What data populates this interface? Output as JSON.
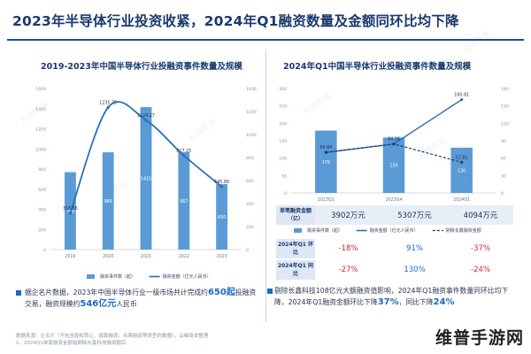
{
  "page": {
    "title": "2023年半导体行业投资收紧，2024年Q1融资数量及金额同环比均下降",
    "watermark": "云岫资本",
    "site_logo": "维普手游网"
  },
  "left_panel": {
    "subtitle": "2019-2023年中国半导体行业投融资事件数量及规模",
    "legend_bar": "融资事件数（起）",
    "legend_line": "融资金额（亿元人民币）",
    "note_parts": {
      "pre": "据企名片数据，2023年中国半导体行业一级市场共计完成约",
      "hl1": "650起",
      "mid": "投融资交易，融资规模约",
      "hl2": "546亿元",
      "post": "人民币"
    }
  },
  "right_panel": {
    "subtitle": "2024年Q1中国半导体行业投融资事件数量及规模",
    "legend_bar": "融资事件数（起）",
    "legend_line": "融资金额（亿元人民币）",
    "legend_dash": "剔除长鑫融资金额",
    "table": {
      "avg_label": "单笔融资金额（亿）",
      "avg": [
        "3902万元",
        "5307万元",
        "4094万元"
      ],
      "yoy_label": "2024年Q1 环比",
      "yoy": [
        "-18%",
        "91%",
        "-37%"
      ],
      "qoq_label": "2024年Q1 同比",
      "qoq": [
        "-27%",
        "130%",
        "-24%"
      ]
    },
    "note_parts": {
      "pre": "剔除长鑫科技108亿元大额融资值影响，2024年Q1融资事件数量同环比均下降，2024年Q1融资金额环比下降",
      "hl1": "37%",
      "mid": "，同比下降",
      "hl2": "24%"
    }
  },
  "source": {
    "line1": "数据来源：企名片（不包含股权转让、借款融资、众筹融资等类型的数据），云岫资本整理",
    "line2": "1、2024Q1单笔融资金额指剔除长鑫科技融资额后"
  },
  "chart_data": [
    {
      "type": "bar",
      "title": "2019-2023年中国半导体行业投融资事件数量及规模",
      "categories": [
        "2019",
        "2020",
        "2021",
        "2022",
        "2023"
      ],
      "series": [
        {
          "name": "融资事件数（起）",
          "type": "bar",
          "values": [
            769,
            966,
            1415,
            967,
            650
          ],
          "color": "#5b9bd5"
        },
        {
          "name": "融资金额（亿元人民币）",
          "type": "line",
          "values": [
            316.56,
            1235.75,
            1124.17,
            817.25,
            545.89
          ],
          "color": "#2e6db4"
        }
      ],
      "ylim_left": [
        0,
        1600
      ],
      "yticks_left": [
        0,
        200,
        400,
        600,
        800,
        1000,
        1200,
        1400,
        1600
      ],
      "ylim_right": [
        0,
        1400
      ],
      "yticks_right": [
        0,
        200,
        400,
        600,
        800,
        1000,
        1200,
        1400
      ],
      "value_labels": {
        "bars": [
          "769",
          "966",
          "1415",
          "967",
          "650"
        ],
        "line": [
          "316.56",
          "1235.75",
          "1124.17",
          "817.25",
          "545.89"
        ]
      }
    },
    {
      "type": "bar",
      "title": "2024年Q1中国半导体行业投融资事件数量及规模",
      "categories": [
        "2023Q1",
        "2023Q4",
        "2024Q1"
      ],
      "series": [
        {
          "name": "融资事件数（起）",
          "type": "bar",
          "values": [
            179,
            159,
            130
          ],
          "color": "#5b9bd5"
        },
        {
          "name": "融资金额（亿元人民币）",
          "type": "line",
          "values": [
            69.84,
            84.38,
            160.81
          ],
          "color": "#2e6db4"
        },
        {
          "name": "剔除长鑫融资金额",
          "type": "dashed-line",
          "values": [
            69.84,
            84.38,
            52.81
          ],
          "color": "#1f3a66"
        }
      ],
      "ylim_left": [
        0,
        300
      ],
      "yticks_left": [
        0,
        50,
        100,
        150,
        200,
        250,
        300
      ],
      "ylim_right": [
        0,
        180
      ],
      "yticks_right": [
        0,
        30,
        60,
        90,
        120,
        150,
        180
      ],
      "value_labels": {
        "bars": [
          "179",
          "159",
          "130"
        ],
        "line": [
          "69.84",
          "84.38",
          "160.81"
        ],
        "dash_end": "52.81"
      }
    }
  ]
}
